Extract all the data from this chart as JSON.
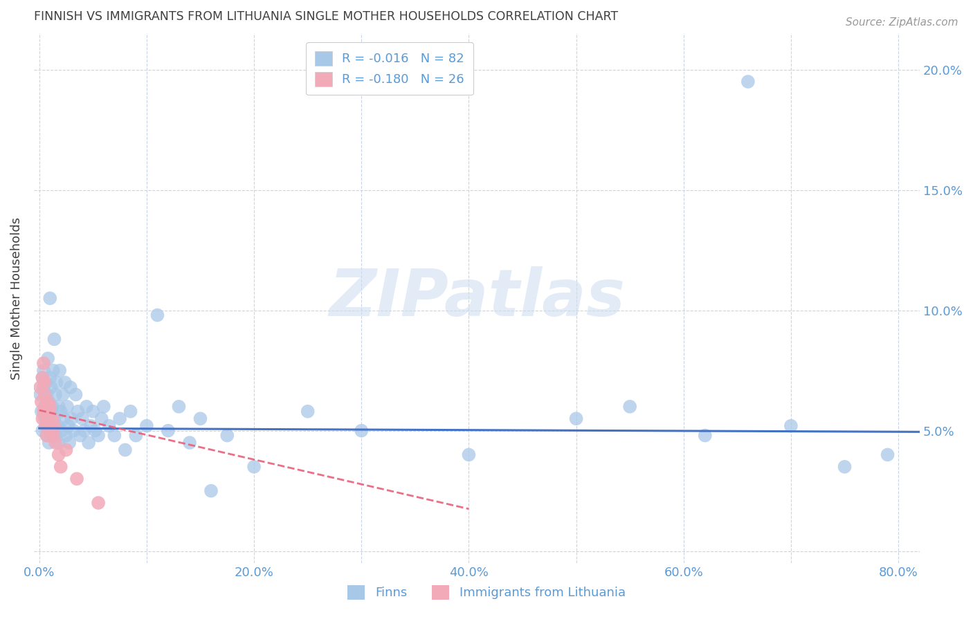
{
  "title": "FINNISH VS IMMIGRANTS FROM LITHUANIA SINGLE MOTHER HOUSEHOLDS CORRELATION CHART",
  "source": "Source: ZipAtlas.com",
  "ylabel": "Single Mother Households",
  "r_finns": -0.016,
  "n_finns": 82,
  "r_lith": -0.18,
  "n_lith": 26,
  "finns_color": "#a8c8e8",
  "lith_color": "#f2aab8",
  "finns_line_color": "#4472c4",
  "lith_line_color": "#e8607a",
  "title_color": "#404040",
  "axis_color": "#5b9bd5",
  "watermark_zip": "ZIP",
  "watermark_atlas": "atlas",
  "xlim": [
    -0.005,
    0.82
  ],
  "ylim": [
    -0.005,
    0.215
  ],
  "x_tick_positions": [
    0.0,
    0.1,
    0.2,
    0.3,
    0.4,
    0.5,
    0.6,
    0.7,
    0.8
  ],
  "x_tick_labels": [
    "0.0%",
    "",
    "20.0%",
    "",
    "40.0%",
    "",
    "60.0%",
    "",
    "80.0%"
  ],
  "y_tick_positions": [
    0.0,
    0.05,
    0.1,
    0.15,
    0.2
  ],
  "y_tick_labels": [
    "",
    "5.0%",
    "10.0%",
    "15.0%",
    "20.0%"
  ],
  "finns_x": [
    0.001,
    0.002,
    0.003,
    0.003,
    0.004,
    0.004,
    0.005,
    0.005,
    0.006,
    0.006,
    0.007,
    0.007,
    0.008,
    0.008,
    0.009,
    0.009,
    0.01,
    0.01,
    0.011,
    0.011,
    0.012,
    0.012,
    0.013,
    0.014,
    0.014,
    0.015,
    0.015,
    0.016,
    0.017,
    0.018,
    0.018,
    0.019,
    0.02,
    0.021,
    0.022,
    0.023,
    0.024,
    0.025,
    0.026,
    0.027,
    0.028,
    0.029,
    0.03,
    0.032,
    0.034,
    0.036,
    0.038,
    0.04,
    0.042,
    0.044,
    0.046,
    0.048,
    0.05,
    0.052,
    0.055,
    0.058,
    0.06,
    0.065,
    0.07,
    0.075,
    0.08,
    0.085,
    0.09,
    0.1,
    0.11,
    0.12,
    0.13,
    0.14,
    0.15,
    0.16,
    0.175,
    0.2,
    0.25,
    0.3,
    0.4,
    0.5,
    0.55,
    0.62,
    0.66,
    0.7,
    0.75,
    0.79
  ],
  "finns_y": [
    0.065,
    0.058,
    0.072,
    0.05,
    0.068,
    0.075,
    0.055,
    0.06,
    0.07,
    0.052,
    0.065,
    0.048,
    0.08,
    0.055,
    0.062,
    0.045,
    0.105,
    0.072,
    0.058,
    0.068,
    0.05,
    0.06,
    0.075,
    0.088,
    0.055,
    0.065,
    0.048,
    0.07,
    0.052,
    0.06,
    0.045,
    0.075,
    0.058,
    0.05,
    0.065,
    0.055,
    0.07,
    0.048,
    0.06,
    0.052,
    0.045,
    0.068,
    0.055,
    0.05,
    0.065,
    0.058,
    0.048,
    0.055,
    0.05,
    0.06,
    0.045,
    0.052,
    0.058,
    0.05,
    0.048,
    0.055,
    0.06,
    0.052,
    0.048,
    0.055,
    0.042,
    0.058,
    0.048,
    0.052,
    0.098,
    0.05,
    0.06,
    0.045,
    0.055,
    0.025,
    0.048,
    0.035,
    0.058,
    0.05,
    0.04,
    0.055,
    0.06,
    0.048,
    0.195,
    0.052,
    0.035,
    0.04
  ],
  "lith_x": [
    0.001,
    0.002,
    0.003,
    0.003,
    0.004,
    0.004,
    0.005,
    0.005,
    0.006,
    0.006,
    0.007,
    0.007,
    0.008,
    0.009,
    0.01,
    0.01,
    0.011,
    0.012,
    0.013,
    0.014,
    0.015,
    0.018,
    0.02,
    0.025,
    0.035,
    0.055
  ],
  "lith_y": [
    0.068,
    0.062,
    0.072,
    0.055,
    0.078,
    0.058,
    0.065,
    0.07,
    0.052,
    0.06,
    0.055,
    0.048,
    0.062,
    0.058,
    0.052,
    0.06,
    0.05,
    0.055,
    0.048,
    0.052,
    0.045,
    0.04,
    0.035,
    0.042,
    0.03,
    0.02
  ],
  "finns_line_x": [
    0.0,
    0.82
  ],
  "finns_line_y": [
    0.051,
    0.0495
  ],
  "lith_line_x": [
    0.0,
    0.4
  ],
  "lith_line_y": [
    0.0585,
    0.0175
  ]
}
